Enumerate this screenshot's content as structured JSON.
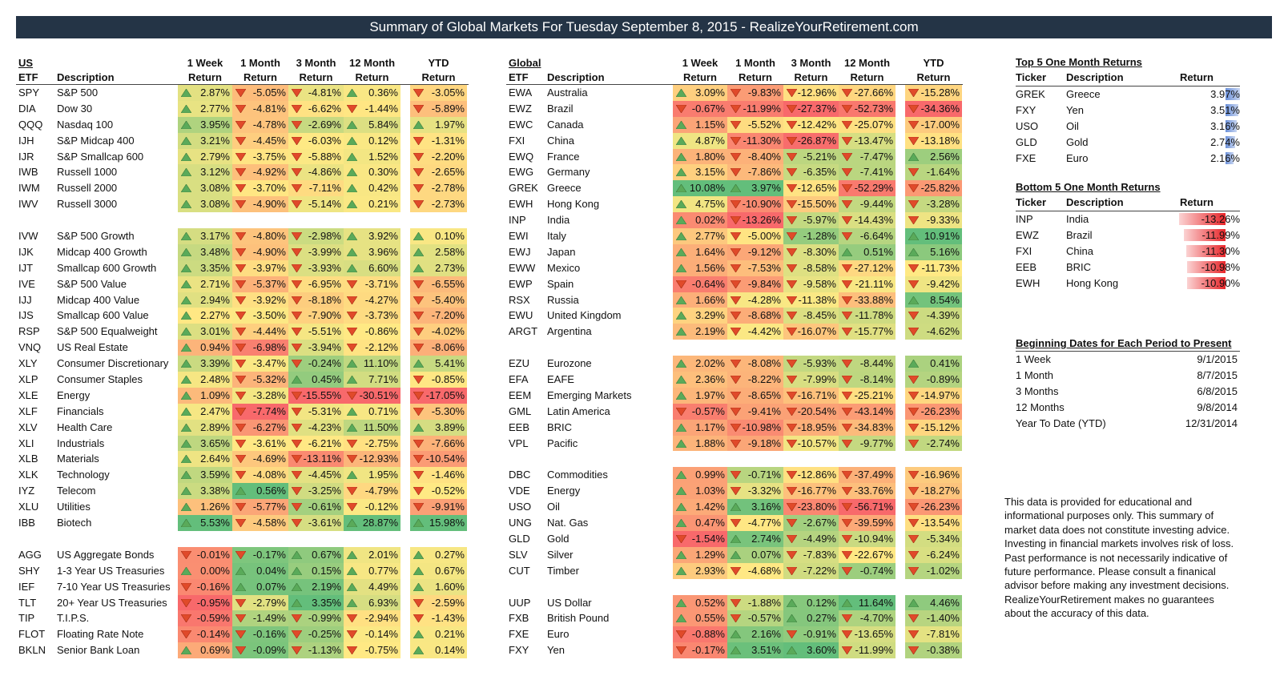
{
  "title": "Summary of Global Markets For Tuesday September 8, 2015 - RealizeYourRetirement.com",
  "us_header": {
    "group": "US",
    "etf": "ETF",
    "desc": "Description",
    "cols": [
      [
        "1 Week",
        "Return"
      ],
      [
        "1 Month",
        "Return"
      ],
      [
        "3 Month",
        "Return"
      ],
      [
        "12 Month",
        "Return"
      ],
      [
        "YTD",
        "Return"
      ]
    ]
  },
  "global_header": {
    "group": "Global",
    "etf": "ETF",
    "desc": "Description",
    "cols": [
      [
        "1 Week",
        "Return"
      ],
      [
        "1 Month",
        "Return"
      ],
      [
        "3 Month",
        "Return"
      ],
      [
        "12 Month",
        "Return"
      ],
      [
        "YTD",
        "Return"
      ]
    ]
  },
  "us_rows": [
    [
      "SPY",
      "S&P 500",
      2.87,
      -5.05,
      -4.81,
      0.36,
      -3.05
    ],
    [
      "DIA",
      "Dow 30",
      2.77,
      -4.81,
      -6.62,
      -1.44,
      -5.89
    ],
    [
      "QQQ",
      "Nasdaq 100",
      3.95,
      -4.78,
      -2.69,
      5.84,
      1.97
    ],
    [
      "IJH",
      "S&P Midcap 400",
      3.21,
      -4.45,
      -6.03,
      0.12,
      -1.31
    ],
    [
      "IJR",
      "S&P Smallcap 600",
      2.79,
      -3.75,
      -5.88,
      1.52,
      -2.2
    ],
    [
      "IWB",
      "Russell 1000",
      3.12,
      -4.92,
      -4.86,
      0.3,
      -2.65
    ],
    [
      "IWM",
      "Russell 2000",
      3.08,
      -3.7,
      -7.11,
      0.42,
      -2.78
    ],
    [
      "IWV",
      "Russell 3000",
      3.08,
      -4.9,
      -5.14,
      0.21,
      -2.73
    ],
    null,
    [
      "IVW",
      "S&P 500 Growth",
      3.17,
      -4.8,
      -2.98,
      3.92,
      0.1
    ],
    [
      "IJK",
      "Midcap 400 Growth",
      3.48,
      -4.9,
      -3.99,
      3.96,
      2.58
    ],
    [
      "IJT",
      "Smallcap 600 Growth",
      3.35,
      -3.97,
      -3.93,
      6.6,
      2.73
    ],
    [
      "IVE",
      "S&P 500 Value",
      2.71,
      -5.37,
      -6.95,
      -3.71,
      -6.55
    ],
    [
      "IJJ",
      "Midcap 400 Value",
      2.94,
      -3.92,
      -8.18,
      -4.27,
      -5.4
    ],
    [
      "IJS",
      "Smallcap 600 Value",
      2.27,
      -3.5,
      -7.9,
      -3.73,
      -7.2
    ],
    [
      "RSP",
      "S&P 500 Equalweight",
      3.01,
      -4.44,
      -5.51,
      -0.86,
      -4.02
    ],
    [
      "VNQ",
      "US Real Estate",
      0.94,
      -6.98,
      -3.94,
      -2.12,
      -8.06
    ],
    [
      "XLY",
      "Consumer Discretionary",
      3.39,
      -3.47,
      -0.24,
      11.1,
      5.41
    ],
    [
      "XLP",
      "Consumer Staples",
      2.48,
      -5.32,
      0.45,
      7.71,
      -0.85
    ],
    [
      "XLE",
      "Energy",
      1.09,
      -3.28,
      -15.55,
      -30.51,
      -17.05
    ],
    [
      "XLF",
      "Financials",
      2.47,
      -7.74,
      -5.31,
      0.71,
      -5.3
    ],
    [
      "XLV",
      "Health Care",
      2.89,
      -6.27,
      -4.23,
      11.5,
      3.89
    ],
    [
      "XLI",
      "Industrials",
      3.65,
      -3.61,
      -6.21,
      -2.75,
      -7.66
    ],
    [
      "XLB",
      "Materials",
      2.64,
      -4.69,
      -13.11,
      -12.93,
      -10.54
    ],
    [
      "XLK",
      "Technology",
      3.59,
      -4.08,
      -4.45,
      1.95,
      -1.46
    ],
    [
      "IYZ",
      "Telecom",
      3.38,
      0.56,
      -3.25,
      -4.79,
      -0.52
    ],
    [
      "XLU",
      "Utilities",
      1.26,
      -5.77,
      -0.61,
      -0.12,
      -9.91
    ],
    [
      "IBB",
      "Biotech",
      5.53,
      -4.58,
      -3.61,
      28.87,
      15.98
    ],
    null,
    [
      "AGG",
      "US Aggregate Bonds",
      -0.01,
      -0.17,
      0.67,
      2.01,
      0.27
    ],
    [
      "SHY",
      "1-3 Year US Treasuries",
      0.0,
      0.04,
      0.15,
      0.77,
      0.67
    ],
    [
      "IEF",
      "7-10 Year US Treasuries",
      -0.16,
      0.07,
      2.19,
      4.49,
      1.6
    ],
    [
      "TLT",
      "20+ Year US Treasuries",
      -0.95,
      -2.79,
      3.35,
      6.93,
      -2.59
    ],
    [
      "TIP",
      "T.I.P.S.",
      -0.59,
      -1.49,
      -0.99,
      -2.94,
      -1.43
    ],
    [
      "FLOT",
      "Floating Rate Note",
      -0.14,
      -0.16,
      -0.25,
      -0.14,
      0.21
    ],
    [
      "BKLN",
      "Senior Bank Loan",
      0.69,
      -0.09,
      -1.13,
      -0.75,
      0.14
    ]
  ],
  "global_rows": [
    [
      "EWA",
      "Australia",
      3.09,
      -9.83,
      -12.96,
      -27.66,
      -15.28
    ],
    [
      "EWZ",
      "Brazil",
      -0.67,
      -11.99,
      -27.37,
      -52.73,
      -34.36
    ],
    [
      "EWC",
      "Canada",
      1.15,
      -5.52,
      -12.42,
      -25.07,
      -17.0
    ],
    [
      "FXI",
      "China",
      4.87,
      -11.3,
      -26.87,
      -13.47,
      -13.18
    ],
    [
      "EWQ",
      "France",
      1.8,
      -8.4,
      -5.21,
      -7.47,
      2.56
    ],
    [
      "EWG",
      "Germany",
      3.15,
      -7.86,
      -6.35,
      -7.41,
      -1.64
    ],
    [
      "GREK",
      "Greece",
      10.08,
      3.97,
      -12.65,
      -52.29,
      -25.82
    ],
    [
      "EWH",
      "Hong Kong",
      4.75,
      -10.9,
      -15.5,
      -9.44,
      -3.28
    ],
    [
      "INP",
      "India",
      0.02,
      -13.26,
      -5.97,
      -14.43,
      -9.33
    ],
    [
      "EWI",
      "Italy",
      2.77,
      -5.0,
      -1.28,
      -6.64,
      10.91
    ],
    [
      "EWJ",
      "Japan",
      1.64,
      -9.12,
      -8.3,
      0.51,
      5.16
    ],
    [
      "EWW",
      "Mexico",
      1.56,
      -7.53,
      -8.58,
      -27.12,
      -11.73
    ],
    [
      "EWP",
      "Spain",
      -0.64,
      -9.84,
      -9.58,
      -21.11,
      -9.42
    ],
    [
      "RSX",
      "Russia",
      1.66,
      -4.28,
      -11.38,
      -33.88,
      8.54
    ],
    [
      "EWU",
      "United Kingdom",
      3.29,
      -8.68,
      -8.45,
      -11.78,
      -4.39
    ],
    [
      "ARGT",
      "Argentina",
      2.19,
      -4.42,
      -16.07,
      -15.77,
      -4.62
    ],
    null,
    [
      "EZU",
      "Eurozone",
      2.02,
      -8.08,
      -5.93,
      -8.44,
      0.41
    ],
    [
      "EFA",
      "EAFE",
      2.36,
      -8.22,
      -7.99,
      -8.14,
      -0.89
    ],
    [
      "EEM",
      "Emerging Markets",
      1.97,
      -8.65,
      -16.71,
      -25.21,
      -14.97
    ],
    [
      "GML",
      "Latin America",
      -0.57,
      -9.41,
      -20.54,
      -43.14,
      -26.23
    ],
    [
      "EEB",
      "BRIC",
      1.17,
      -10.98,
      -18.95,
      -34.83,
      -15.12
    ],
    [
      "VPL",
      "Pacific",
      1.88,
      -9.18,
      -10.57,
      -9.77,
      -2.74
    ],
    null,
    [
      "DBC",
      "Commodities",
      0.99,
      -0.71,
      -12.86,
      -37.49,
      -16.96
    ],
    [
      "VDE",
      "Energy",
      1.03,
      -3.32,
      -16.77,
      -33.76,
      -18.27
    ],
    [
      "USO",
      "Oil",
      1.42,
      3.16,
      -23.8,
      -56.71,
      -26.23
    ],
    [
      "UNG",
      "Nat. Gas",
      0.47,
      -4.77,
      -2.67,
      -39.59,
      -13.54
    ],
    [
      "GLD",
      "Gold",
      -1.54,
      2.74,
      -4.49,
      -10.94,
      -5.34
    ],
    [
      "SLV",
      "Silver",
      1.29,
      0.07,
      -7.83,
      -22.67,
      -6.24
    ],
    [
      "CUT",
      "Timber",
      2.93,
      -4.68,
      -7.22,
      -0.74,
      -1.02
    ],
    null,
    [
      "UUP",
      "US Dollar",
      0.52,
      -1.88,
      0.12,
      11.64,
      4.46
    ],
    [
      "FXB",
      "British Pound",
      0.55,
      -0.57,
      0.27,
      -4.7,
      -1.4
    ],
    [
      "FXE",
      "Euro",
      -0.88,
      2.16,
      -0.91,
      -13.65,
      -7.81
    ],
    [
      "FXY",
      "Yen",
      -0.17,
      3.51,
      3.6,
      -11.99,
      -0.38
    ]
  ],
  "top5": {
    "title": "Top 5 One Month Returns",
    "h_ticker": "Ticker",
    "h_desc": "Description",
    "h_ret": "Return",
    "rows": [
      [
        "GREK",
        "Greece",
        3.97
      ],
      [
        "FXY",
        "Yen",
        3.51
      ],
      [
        "USO",
        "Oil",
        3.16
      ],
      [
        "GLD",
        "Gold",
        2.74
      ],
      [
        "FXE",
        "Euro",
        2.16
      ]
    ]
  },
  "bottom5": {
    "title": "Bottom 5 One Month Returns",
    "h_ticker": "Ticker",
    "h_desc": "Description",
    "h_ret": "Return",
    "rows": [
      [
        "INP",
        "India",
        -13.26
      ],
      [
        "EWZ",
        "Brazil",
        -11.99
      ],
      [
        "FXI",
        "China",
        -11.3
      ],
      [
        "EEB",
        "BRIC",
        -10.98
      ],
      [
        "EWH",
        "Hong Kong",
        -10.9
      ]
    ]
  },
  "dates": {
    "title": "Beginning Dates for Each Period to Present",
    "rows": [
      [
        "1 Week",
        "9/1/2015"
      ],
      [
        "1 Month",
        "8/7/2015"
      ],
      [
        "3 Months",
        "6/8/2015"
      ],
      [
        "12 Months",
        "9/8/2014"
      ],
      [
        "Year To Date (YTD)",
        "12/31/2014"
      ]
    ]
  },
  "disclaimer": "This data is provided for educational and informational purposes only. This summary of market data does not constitute investing advice. Investing in financial markets involves risk of loss.  Past performance is not necessarily  indicative of future performance. Please consult a finanical advisor before making any investment decisions. RealizeYourRetirement makes no guarantees about the accuracy of this data.",
  "colors": {
    "title_bg": "#243446",
    "up": "#5aaa5a",
    "down": "#e04a2a",
    "scale_low": "#f8696b",
    "scale_mid": "#ffe984",
    "scale_high": "#63be7b"
  }
}
